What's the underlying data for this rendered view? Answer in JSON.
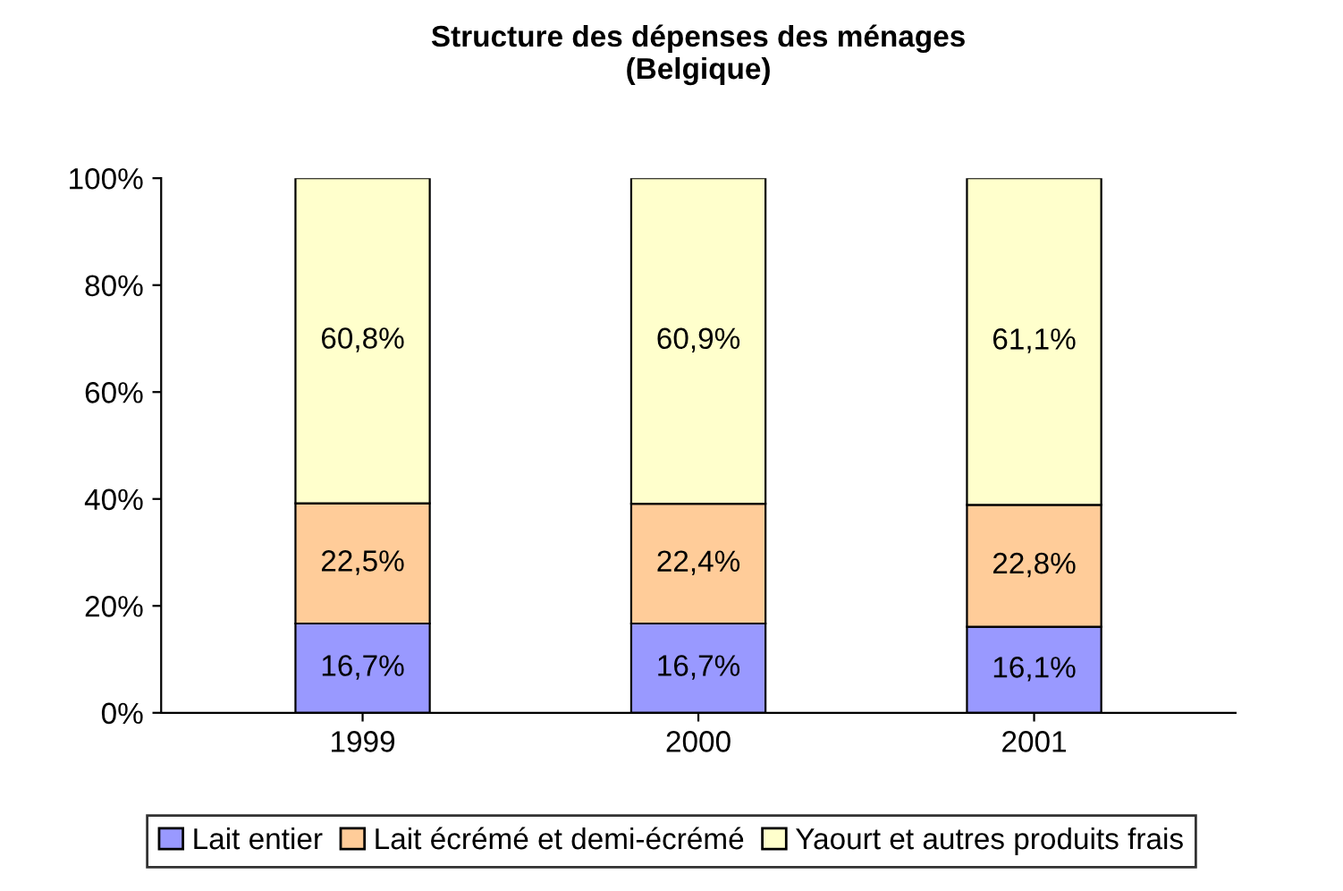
{
  "chart_data": {
    "type": "bar",
    "title": "Structure des dépenses des ménages\n(Belgique)",
    "stacked": true,
    "categories": [
      "1999",
      "2000",
      "2001"
    ],
    "series": [
      {
        "name": "Lait entier",
        "color": "#9999ff",
        "values": [
          16.7,
          16.7,
          16.1
        ],
        "value_labels": [
          "16,7%",
          "16,7%",
          "16,1%"
        ]
      },
      {
        "name": "Lait écrémé et demi-écrémé",
        "color": "#ffcc99",
        "values": [
          22.5,
          22.4,
          22.8
        ],
        "value_labels": [
          "22,5%",
          "22,4%",
          "22,8%"
        ]
      },
      {
        "name": "Yaourt et autres produits frais",
        "color": "#ffffcc",
        "values": [
          60.8,
          60.9,
          61.1
        ],
        "value_labels": [
          "60,8%",
          "60,9%",
          "61,1%"
        ]
      }
    ],
    "ylim": [
      0,
      100
    ],
    "yticks": [
      {
        "value": 0,
        "label": "0%"
      },
      {
        "value": 20,
        "label": "20%"
      },
      {
        "value": 40,
        "label": "40%"
      },
      {
        "value": 60,
        "label": "60%"
      },
      {
        "value": 80,
        "label": "80%"
      },
      {
        "value": 100,
        "label": "100%"
      }
    ],
    "legend": "bottom",
    "grid": false
  }
}
